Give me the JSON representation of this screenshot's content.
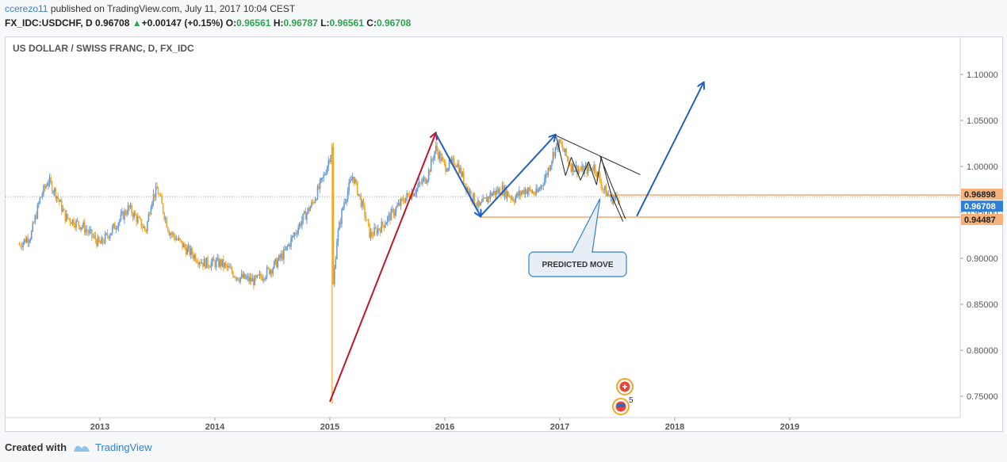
{
  "header": {
    "username": "ccerezo11",
    "published_text": "published on TradingView.com, July 11, 2017 10:04 CEST"
  },
  "quote": {
    "symbol_line": "FX_IDC:USDCHF, D",
    "last": "0.96708",
    "change_arrow": "▲",
    "change": "+0.00147 (+0.15%)",
    "open_label": "O:",
    "open": "0.96561",
    "high_label": "H:",
    "high": "0.96787",
    "low_label": "L:",
    "low": "0.96561",
    "close_label": "C:",
    "close": "0.96708"
  },
  "footer": {
    "created_with": "Created with",
    "brand": "TradingView"
  },
  "colors": {
    "candle_up": "#6a9ad4",
    "candle_down": "#f5a623",
    "red_arrow": "#c0152a",
    "blue_arrow": "#1f5fc1",
    "level_line": "#f5a86b",
    "price_tag": "#2f7fd6",
    "level_tag": "#f6b27c",
    "callout_fill": "#e8eef6",
    "callout_stroke": "#2f7fd6"
  },
  "chart_data": {
    "type": "candlestick",
    "title": "US DOLLAR / SWISS FRANC, D, FX_IDC",
    "x_ticks": [
      "2013",
      "2014",
      "2015",
      "2016",
      "2017",
      "2018",
      "2019"
    ],
    "y_ticks": [
      "0.75000",
      "0.80000",
      "0.85000",
      "0.90000",
      "0.95000",
      "1.00000",
      "1.05000",
      "1.10000"
    ],
    "ylim": [
      0.728,
      1.132
    ],
    "xlim": [
      2012.27,
      2020.5
    ],
    "price_labels": {
      "resistance": "0.96898",
      "current": "0.96708",
      "support": "0.94487"
    },
    "levels": {
      "resistance": 0.96898,
      "current": 0.96708,
      "support": 0.94487
    },
    "approx_close_path": [
      {
        "x": 2012.3,
        "y": 0.915
      },
      {
        "x": 2012.4,
        "y": 0.925
      },
      {
        "x": 2012.48,
        "y": 0.965
      },
      {
        "x": 2012.55,
        "y": 0.985
      },
      {
        "x": 2012.62,
        "y": 0.97
      },
      {
        "x": 2012.7,
        "y": 0.945
      },
      {
        "x": 2012.85,
        "y": 0.935
      },
      {
        "x": 2013.0,
        "y": 0.915
      },
      {
        "x": 2013.1,
        "y": 0.93
      },
      {
        "x": 2013.25,
        "y": 0.955
      },
      {
        "x": 2013.4,
        "y": 0.93
      },
      {
        "x": 2013.45,
        "y": 0.965
      },
      {
        "x": 2013.5,
        "y": 0.975
      },
      {
        "x": 2013.6,
        "y": 0.93
      },
      {
        "x": 2013.75,
        "y": 0.91
      },
      {
        "x": 2013.9,
        "y": 0.895
      },
      {
        "x": 2014.05,
        "y": 0.895
      },
      {
        "x": 2014.2,
        "y": 0.88
      },
      {
        "x": 2014.35,
        "y": 0.875
      },
      {
        "x": 2014.5,
        "y": 0.89
      },
      {
        "x": 2014.6,
        "y": 0.905
      },
      {
        "x": 2014.75,
        "y": 0.94
      },
      {
        "x": 2014.85,
        "y": 0.96
      },
      {
        "x": 2014.95,
        "y": 0.99
      },
      {
        "x": 2015.02,
        "y": 1.02
      },
      {
        "x": 2015.03,
        "y": 0.87
      },
      {
        "x": 2015.06,
        "y": 0.92
      },
      {
        "x": 2015.12,
        "y": 0.96
      },
      {
        "x": 2015.2,
        "y": 0.99
      },
      {
        "x": 2015.3,
        "y": 0.95
      },
      {
        "x": 2015.35,
        "y": 0.925
      },
      {
        "x": 2015.45,
        "y": 0.935
      },
      {
        "x": 2015.55,
        "y": 0.95
      },
      {
        "x": 2015.65,
        "y": 0.965
      },
      {
        "x": 2015.75,
        "y": 0.975
      },
      {
        "x": 2015.85,
        "y": 0.99
      },
      {
        "x": 2015.92,
        "y": 1.02
      },
      {
        "x": 2016.0,
        "y": 1.0
      },
      {
        "x": 2016.1,
        "y": 1.005
      },
      {
        "x": 2016.2,
        "y": 0.975
      },
      {
        "x": 2016.3,
        "y": 0.955
      },
      {
        "x": 2016.4,
        "y": 0.97
      },
      {
        "x": 2016.5,
        "y": 0.975
      },
      {
        "x": 2016.6,
        "y": 0.965
      },
      {
        "x": 2016.7,
        "y": 0.975
      },
      {
        "x": 2016.8,
        "y": 0.97
      },
      {
        "x": 2016.88,
        "y": 0.99
      },
      {
        "x": 2016.96,
        "y": 1.02
      },
      {
        "x": 2017.0,
        "y": 1.025
      },
      {
        "x": 2017.1,
        "y": 1.0
      },
      {
        "x": 2017.2,
        "y": 0.995
      },
      {
        "x": 2017.3,
        "y": 1.0
      },
      {
        "x": 2017.38,
        "y": 0.975
      },
      {
        "x": 2017.45,
        "y": 0.965
      },
      {
        "x": 2017.52,
        "y": 0.967
      }
    ],
    "annotations": [
      {
        "type": "arrow",
        "color": "red",
        "from": [
          2015.0,
          0.744
        ],
        "to": [
          2015.92,
          1.036
        ]
      },
      {
        "type": "arrow",
        "color": "blue",
        "from": [
          2015.92,
          1.036
        ],
        "to": [
          2016.31,
          0.946
        ]
      },
      {
        "type": "arrow",
        "color": "blue",
        "from": [
          2016.31,
          0.946
        ],
        "to": [
          2016.96,
          1.034
        ]
      },
      {
        "type": "arrow",
        "color": "blue",
        "from": [
          2017.67,
          0.946
        ],
        "to": [
          2018.25,
          1.091
        ]
      },
      {
        "type": "trendline",
        "from": [
          2016.96,
          1.034
        ],
        "to": [
          2017.7,
          0.991
        ]
      },
      {
        "type": "trendline",
        "from": [
          2017.35,
          1.011
        ],
        "to": [
          2017.57,
          0.943
        ]
      },
      {
        "type": "callout",
        "text": "PREDICTED MOVE",
        "anchor": [
          2017.35,
          0.965
        ]
      }
    ],
    "event_badges": [
      {
        "icon": "plus-badge",
        "x": 2017.55
      },
      {
        "icon": "flag-badge",
        "label": "5",
        "x": 2017.55
      }
    ]
  }
}
